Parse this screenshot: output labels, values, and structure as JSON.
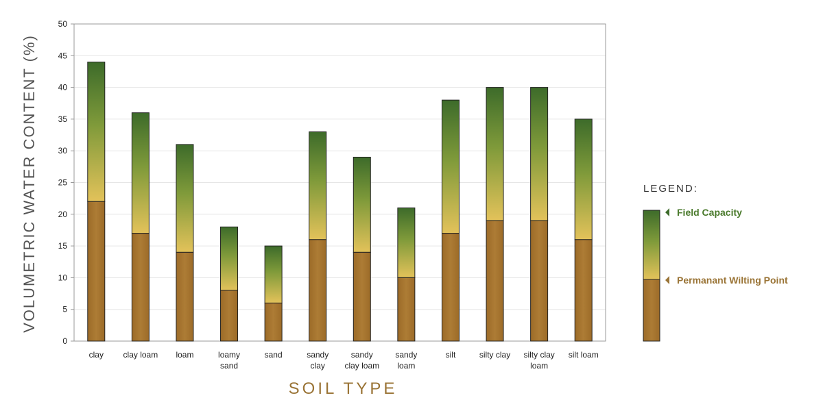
{
  "chart_data": {
    "type": "bar",
    "ylabel": "VOLUMETRIC WATER CONTENT (%)",
    "xlabel": "SOIL TYPE",
    "ylim": [
      0,
      50
    ],
    "yticks": [
      0,
      5,
      10,
      15,
      20,
      25,
      30,
      35,
      40,
      45,
      50
    ],
    "grid": true,
    "categories": [
      [
        "clay"
      ],
      [
        "clay loam"
      ],
      [
        "loam"
      ],
      [
        "loamy",
        "sand"
      ],
      [
        "sand"
      ],
      [
        "sandy",
        "clay"
      ],
      [
        "sandy",
        "clay loam"
      ],
      [
        "sandy",
        "loam"
      ],
      [
        "silt"
      ],
      [
        "silty clay"
      ],
      [
        "silty clay",
        "loam"
      ],
      [
        "silt loam"
      ]
    ],
    "series": [
      {
        "name": "Permanant Wilting Point",
        "values": [
          22,
          17,
          14,
          8,
          6,
          16,
          14,
          10,
          17,
          19,
          19,
          16
        ]
      },
      {
        "name": "Field Capacity",
        "values": [
          44,
          36,
          31,
          18,
          15,
          33,
          29,
          21,
          38,
          40,
          40,
          35
        ]
      }
    ],
    "legend": {
      "title": "LEGEND:",
      "placement": "right",
      "field_capacity": "Field Capacity",
      "wilting_point": "Permanant Wilting Point"
    },
    "colors": {
      "wilting_fill": "#a6742e",
      "gradient_top": "#3d6b2a",
      "gradient_bottom": "#e3c25a",
      "field_capacity_text": "#4a7a2c",
      "wilting_text": "#9a7436",
      "grid": "#e6e6e6"
    }
  }
}
